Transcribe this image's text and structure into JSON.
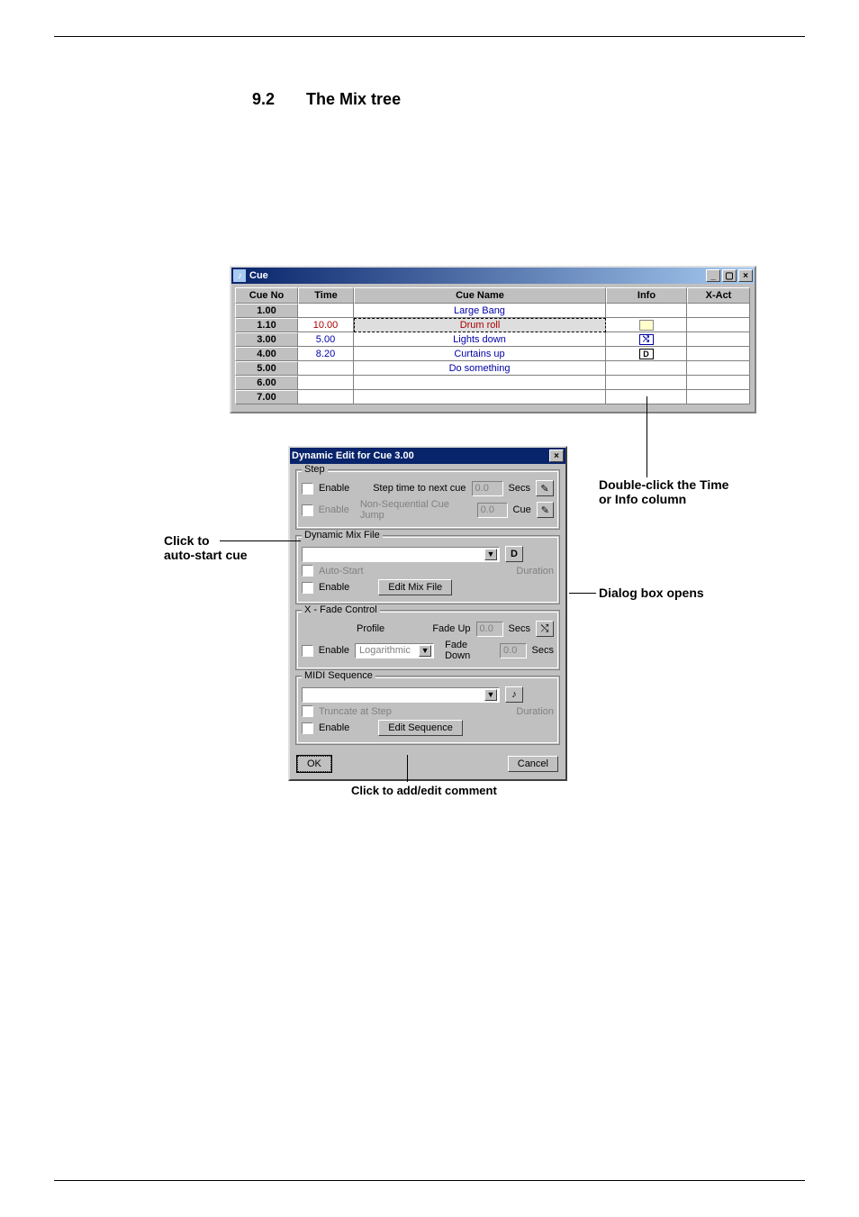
{
  "section": {
    "number": "9.2",
    "title": "The Mix tree"
  },
  "cue_window": {
    "title": "Cue",
    "icon_glyph": "♪",
    "columns": [
      "Cue No",
      "Time",
      "Cue Name",
      "Info",
      "X-Act"
    ],
    "rows": [
      {
        "cue_no": "1.00",
        "time": "",
        "name": "Large Bang",
        "name_color": "#0000aa",
        "info_icon": null,
        "xact": "",
        "time_color": "#0000aa"
      },
      {
        "cue_no": "1.10",
        "time": "10.00",
        "name": "Drum roll",
        "name_color": "#aa0000",
        "info_icon": "note",
        "xact": "",
        "time_color": "#aa0000",
        "sel": true
      },
      {
        "cue_no": "3.00",
        "time": "5.00",
        "name": "Lights down",
        "name_color": "#0000aa",
        "info_icon": "xfade",
        "xact": "",
        "time_color": "#0000aa"
      },
      {
        "cue_no": "4.00",
        "time": "8.20",
        "name": "Curtains up",
        "name_color": "#0000aa",
        "info_icon": "dyn",
        "xact": "",
        "time_color": "#0000aa"
      },
      {
        "cue_no": "5.00",
        "time": "",
        "name": "Do something",
        "name_color": "#0000aa",
        "info_icon": null,
        "xact": "",
        "time_color": "#0000aa"
      },
      {
        "cue_no": "6.00",
        "time": "",
        "name": "",
        "name_color": "#0000aa",
        "info_icon": null,
        "xact": "",
        "time_color": "#0000aa"
      },
      {
        "cue_no": "7.00",
        "time": "",
        "name": "",
        "name_color": "#0000aa",
        "info_icon": null,
        "xact": "",
        "time_color": "#0000aa"
      }
    ],
    "info_icons": {
      "note": {
        "bg": "#ffffcc",
        "border": "#888888",
        "glyph": ""
      },
      "xfade": {
        "bg": "#ffffff",
        "border": "#0000aa",
        "glyph": "⤭"
      },
      "dyn": {
        "bg": "#ffffff",
        "border": "#000000",
        "glyph": "D"
      }
    }
  },
  "dialog": {
    "title": "Dynamic Edit for Cue 3.00",
    "groups": {
      "step": {
        "legend": "Step",
        "enable_label": "Enable",
        "step_time_label": "Step time to next cue",
        "step_time_value": "0.0",
        "step_time_unit": "Secs",
        "enable2_label": "Enable",
        "nonseq_label": "Non-Sequential Cue Jump",
        "nonseq_value": "0.0",
        "nonseq_unit": "Cue"
      },
      "dynmix": {
        "legend": "Dynamic Mix File",
        "autostart_label": "Auto-Start",
        "duration_label": "Duration",
        "enable_label": "Enable",
        "edit_button": "Edit Mix File",
        "side_icon_glyph": "D",
        "file_value": ""
      },
      "xfade": {
        "legend": "X - Fade Control",
        "profile_label": "Profile",
        "profile_value": "Logarithmic",
        "fade_up_label": "Fade Up",
        "fade_up_value": "0.0",
        "fade_down_label": "Fade Down",
        "fade_down_value": "0.0",
        "unit": "Secs",
        "enable_label": "Enable",
        "side_icon_glyph": "⤭"
      },
      "midi": {
        "legend": "MIDI Sequence",
        "truncate_label": "Truncate at Step",
        "duration_label": "Duration",
        "enable_label": "Enable",
        "edit_button": "Edit Sequence",
        "side_icon_glyph": "♪",
        "file_value": ""
      }
    },
    "ok_label": "OK",
    "cancel_label": "Cancel"
  },
  "annotations": {
    "click_to": "Click to",
    "auto_start": "auto-start cue",
    "double_click": "Double-click the Time",
    "or_info": "or Info column",
    "dialog_opens": "Dialog box opens",
    "add_comment": "Click to add/edit comment"
  },
  "colors": {
    "page_bg": "#ffffff",
    "win_bg": "#c0c0c0",
    "titlebar_start": "#08246b",
    "titlebar_end": "#a6caf0",
    "blue_text": "#0000aa",
    "red_text": "#aa0000"
  }
}
